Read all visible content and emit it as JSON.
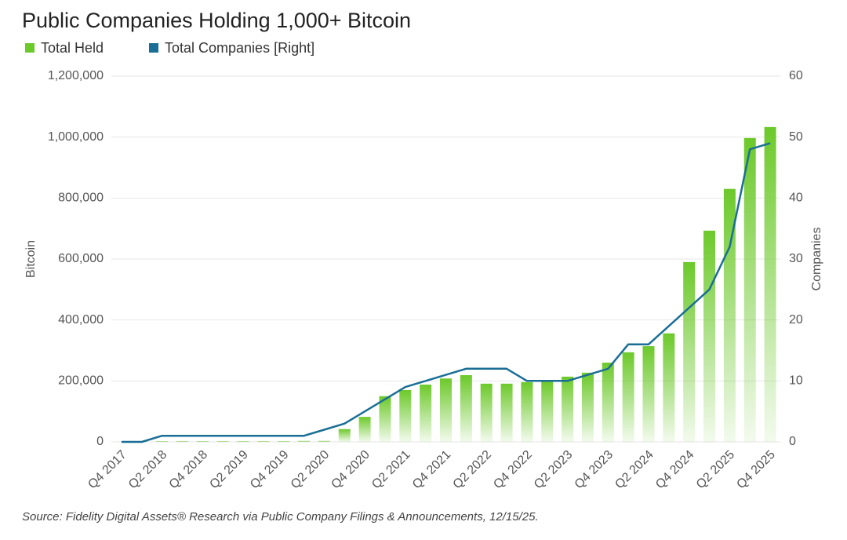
{
  "chart_data": {
    "type": "bar-line",
    "title": "Public Companies Holding 1,000+ Bitcoin",
    "source": "Source: Fidelity Digital Assets® Research via Public Company Filings & Announcements, 12/15/25.",
    "y_label": "Bitcoin",
    "y2_label": "Companies",
    "categories": [
      "Q4 2017",
      null,
      "Q2 2018",
      null,
      "Q4 2018",
      null,
      "Q2 2019",
      null,
      "Q4 2019",
      null,
      "Q2 2020",
      null,
      "Q4 2020",
      null,
      "Q2 2021",
      null,
      "Q4 2021",
      null,
      "Q2 2022",
      null,
      "Q4 2022",
      null,
      "Q2 2023",
      null,
      "Q4 2023",
      null,
      "Q2 2024",
      null,
      "Q4 2024",
      null,
      "Q2 2025",
      null,
      "Q4 2025"
    ],
    "series": [
      {
        "name": "Total Held",
        "type": "bar",
        "color": "#6cc92a",
        "values": [
          0,
          1000,
          2000,
          2000,
          2000,
          2000,
          2000,
          2000,
          2000,
          3000,
          3000,
          42000,
          82000,
          150000,
          170000,
          188000,
          208000,
          219000,
          191000,
          191000,
          196000,
          200000,
          214000,
          227000,
          260000,
          294000,
          314000,
          356000,
          590000,
          693000,
          830000,
          997000,
          1033000
        ]
      },
      {
        "name": "Total Companies [Right]",
        "type": "line",
        "axis": "y2",
        "color": "#1a6e96",
        "values": [
          0,
          0,
          1,
          1,
          1,
          1,
          1,
          1,
          1,
          1,
          2,
          3,
          5,
          7,
          9,
          10,
          11,
          12,
          12,
          12,
          10,
          10,
          10,
          11,
          12,
          16,
          16,
          19,
          22,
          25,
          32,
          48,
          49
        ]
      }
    ],
    "ylim": [
      0,
      1200000
    ],
    "yticks": [
      0,
      {
        "value": 200000,
        "label": "200,000"
      },
      {
        "value": 400000,
        "label": "400,000"
      },
      {
        "value": 600000,
        "label": "600,000"
      },
      {
        "value": 800000,
        "label": "800,000"
      },
      {
        "value": 1000000,
        "label": "1,000,000"
      },
      {
        "value": 1200000,
        "label": "1,200,000"
      }
    ],
    "y2lim": [
      0,
      60
    ],
    "y2ticks": [
      0,
      10,
      20,
      30,
      40,
      50,
      60
    ],
    "grid": true
  }
}
